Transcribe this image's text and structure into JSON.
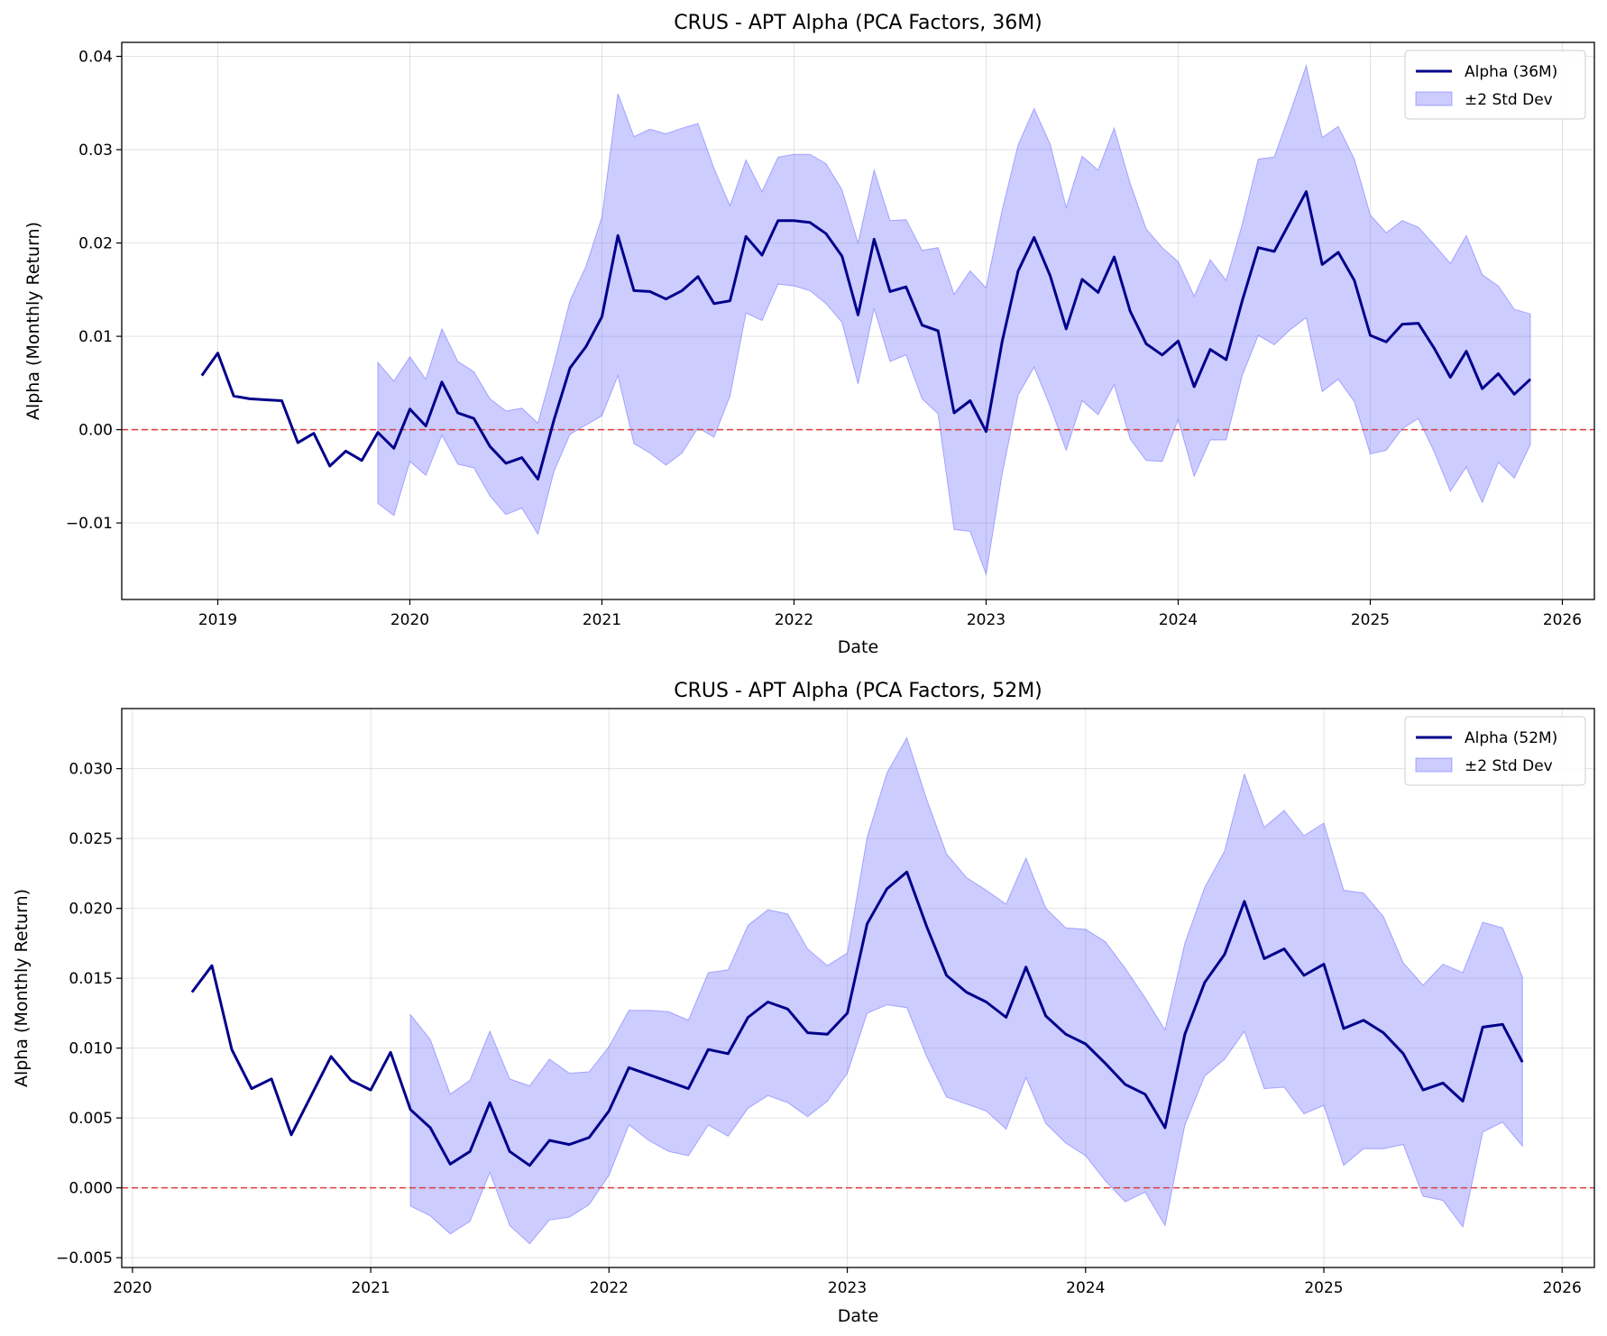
{
  "chart_data": [
    {
      "type": "line",
      "title": "CRUS - APT Alpha (PCA Factors, 36M)",
      "xlabel": "Date",
      "ylabel": "Alpha (Monthly Return)",
      "xlim": [
        "2018-07-01",
        "2026-03-01"
      ],
      "ylim": [
        -0.0182,
        0.0415
      ],
      "xticks": [
        "2019",
        "2020",
        "2021",
        "2022",
        "2023",
        "2024",
        "2025",
        "2026"
      ],
      "yticks": [
        "−0.01",
        "0.00",
        "0.01",
        "0.02",
        "0.03",
        "0.04"
      ],
      "ytick_values": [
        -0.01,
        0.0,
        0.01,
        0.02,
        0.03,
        0.04
      ],
      "grid": true,
      "legend_position": "top-right",
      "reference_line": {
        "y": 0.0,
        "color": "#e03c3c",
        "style": "dashed"
      },
      "series": [
        {
          "name": "Alpha (36M)",
          "color": "#00008b",
          "start": "2018-12",
          "values": [
            0.0058,
            0.0082,
            0.0036,
            0.0033,
            0.0032,
            0.0031,
            -0.0014,
            -0.0004,
            -0.0039,
            -0.0023,
            -0.0033,
            -0.0003,
            -0.002,
            0.0022,
            0.0004,
            0.0051,
            0.0018,
            0.0012,
            -0.0018,
            -0.0036,
            -0.003,
            -0.0053,
            0.001,
            0.0066,
            0.0089,
            0.0121,
            0.0208,
            0.0149,
            0.0148,
            0.014,
            0.0149,
            0.0164,
            0.0135,
            0.0138,
            0.0207,
            0.0187,
            0.0224,
            0.0224,
            0.0222,
            0.021,
            0.0186,
            0.0123,
            0.0204,
            0.0148,
            0.0153,
            0.0112,
            0.0106,
            0.0018,
            0.0031,
            -0.0002,
            0.0094,
            0.017,
            0.0206,
            0.0165,
            0.0108,
            0.0161,
            0.0147,
            0.0185,
            0.0127,
            0.0092,
            0.008,
            0.0095,
            0.0046,
            0.0086,
            0.0075,
            0.0138,
            0.0195,
            0.0191,
            0.0223,
            0.0255,
            0.0177,
            0.019,
            0.016,
            0.0101,
            0.0094,
            0.0113,
            0.0114,
            0.0087,
            0.0056,
            0.0084,
            0.0044,
            0.006,
            0.0038,
            0.0054
          ]
        },
        {
          "name": "±2 Std Dev",
          "color": "#6464ff",
          "start": "2019-11",
          "upper": [
            0.0072,
            0.0052,
            0.0078,
            0.0054,
            0.0108,
            0.0073,
            0.0062,
            0.0033,
            0.002,
            0.0023,
            0.0007,
            0.007,
            0.0138,
            0.0175,
            0.0228,
            0.036,
            0.0314,
            0.0322,
            0.0317,
            0.0323,
            0.0328,
            0.028,
            0.024,
            0.0289,
            0.0255,
            0.0292,
            0.0295,
            0.0295,
            0.0285,
            0.0257,
            0.02,
            0.0278,
            0.0224,
            0.0225,
            0.0192,
            0.0195,
            0.0145,
            0.017,
            0.0152,
            0.0235,
            0.0305,
            0.0344,
            0.0306,
            0.0238,
            0.0293,
            0.0278,
            0.0323,
            0.0264,
            0.0215,
            0.0195,
            0.018,
            0.0143,
            0.0182,
            0.016,
            0.022,
            0.029,
            0.0292,
            0.034,
            0.039,
            0.0313,
            0.0325,
            0.029,
            0.023,
            0.0211,
            0.0224,
            0.0217,
            0.0198,
            0.0178,
            0.0208,
            0.0166,
            0.0154,
            0.0129,
            0.0124
          ],
          "lower": [
            -0.0079,
            -0.0092,
            -0.0034,
            -0.0049,
            -0.0006,
            -0.0037,
            -0.0041,
            -0.0071,
            -0.0091,
            -0.0084,
            -0.0112,
            -0.0045,
            -0.0005,
            0.0005,
            0.0015,
            0.0058,
            -0.0015,
            -0.0025,
            -0.0038,
            -0.0025,
            0.0002,
            -0.0008,
            0.0036,
            0.0125,
            0.0117,
            0.0156,
            0.0154,
            0.0149,
            0.0135,
            0.0115,
            0.0049,
            0.013,
            0.0073,
            0.008,
            0.0033,
            0.0017,
            -0.0107,
            -0.0109,
            -0.0155,
            -0.0048,
            0.0037,
            0.0067,
            0.0025,
            -0.0022,
            0.0031,
            0.0016,
            0.0048,
            -0.001,
            -0.0033,
            -0.0034,
            0.0011,
            -0.005,
            -0.0011,
            -0.0011,
            0.0058,
            0.0101,
            0.0091,
            0.0107,
            0.012,
            0.0041,
            0.0054,
            0.003,
            -0.0026,
            -0.0022,
            0.0001,
            0.0012,
            -0.0024,
            -0.0066,
            -0.004,
            -0.0078,
            -0.0035,
            -0.0052,
            -0.0016
          ]
        }
      ]
    },
    {
      "type": "line",
      "title": "CRUS - APT Alpha (PCA Factors, 52M)",
      "xlabel": "Date",
      "ylabel": "Alpha (Monthly Return)",
      "xlim": [
        "2019-12-15",
        "2026-02-20"
      ],
      "ylim": [
        -0.0057,
        0.0343
      ],
      "xticks": [
        "2020",
        "2021",
        "2022",
        "2023",
        "2024",
        "2025",
        "2026"
      ],
      "yticks": [
        "−0.005",
        "0.000",
        "0.005",
        "0.010",
        "0.015",
        "0.020",
        "0.025",
        "0.030"
      ],
      "ytick_values": [
        -0.005,
        0.0,
        0.005,
        0.01,
        0.015,
        0.02,
        0.025,
        0.03
      ],
      "grid": true,
      "legend_position": "top-right",
      "reference_line": {
        "y": 0.0,
        "color": "#e03c3c",
        "style": "dashed"
      },
      "series": [
        {
          "name": "Alpha (52M)",
          "color": "#00008b",
          "start": "2020-04",
          "values": [
            0.014,
            0.0159,
            0.0099,
            0.0071,
            0.0078,
            0.0038,
            0.0066,
            0.0094,
            0.0077,
            0.007,
            0.0097,
            0.0056,
            0.0043,
            0.0017,
            0.0026,
            0.0061,
            0.0026,
            0.0016,
            0.0034,
            0.0031,
            0.0036,
            0.0055,
            0.0086,
            0.0081,
            0.0076,
            0.0071,
            0.0099,
            0.0096,
            0.0122,
            0.0133,
            0.0128,
            0.0111,
            0.011,
            0.0125,
            0.0189,
            0.0214,
            0.0226,
            0.0187,
            0.0152,
            0.014,
            0.0133,
            0.0122,
            0.0158,
            0.0123,
            0.011,
            0.0103,
            0.0089,
            0.0074,
            0.0067,
            0.0043,
            0.011,
            0.0147,
            0.0167,
            0.0205,
            0.0164,
            0.0171,
            0.0152,
            0.016,
            0.0114,
            0.012,
            0.0111,
            0.0096,
            0.007,
            0.0075,
            0.0062,
            0.0115,
            0.0117,
            0.009
          ]
        },
        {
          "name": "±2 Std Dev",
          "color": "#6464ff",
          "start": "2021-03",
          "upper": [
            0.0124,
            0.0106,
            0.0067,
            0.0077,
            0.0112,
            0.0078,
            0.0073,
            0.0092,
            0.0082,
            0.0083,
            0.0101,
            0.0127,
            0.0127,
            0.0126,
            0.012,
            0.0154,
            0.0156,
            0.0188,
            0.0199,
            0.0196,
            0.0171,
            0.0159,
            0.0168,
            0.0251,
            0.0297,
            0.0322,
            0.0278,
            0.0239,
            0.0222,
            0.0213,
            0.0203,
            0.0236,
            0.02,
            0.0186,
            0.0185,
            0.0176,
            0.0157,
            0.0136,
            0.0113,
            0.0175,
            0.0215,
            0.0241,
            0.0296,
            0.0258,
            0.027,
            0.0252,
            0.0261,
            0.0213,
            0.0211,
            0.0194,
            0.0161,
            0.0145,
            0.016,
            0.0154,
            0.019,
            0.0186,
            0.0151
          ],
          "lower": [
            -0.0013,
            -0.002,
            -0.0033,
            -0.0024,
            0.0011,
            -0.0027,
            -0.004,
            -0.0023,
            -0.0021,
            -0.0012,
            0.0009,
            0.0045,
            0.0034,
            0.0026,
            0.0023,
            0.0045,
            0.0037,
            0.0057,
            0.0066,
            0.0061,
            0.0051,
            0.0062,
            0.0082,
            0.0125,
            0.0131,
            0.0129,
            0.0094,
            0.0065,
            0.006,
            0.0055,
            0.0042,
            0.0079,
            0.0046,
            0.0032,
            0.0023,
            0.0005,
            -0.001,
            -0.0003,
            -0.0027,
            0.0045,
            0.008,
            0.0092,
            0.0112,
            0.0071,
            0.0072,
            0.0053,
            0.0059,
            0.0016,
            0.0028,
            0.0028,
            0.0031,
            -0.0006,
            -0.0009,
            -0.0028,
            0.004,
            0.0047,
            0.003
          ]
        }
      ]
    }
  ]
}
